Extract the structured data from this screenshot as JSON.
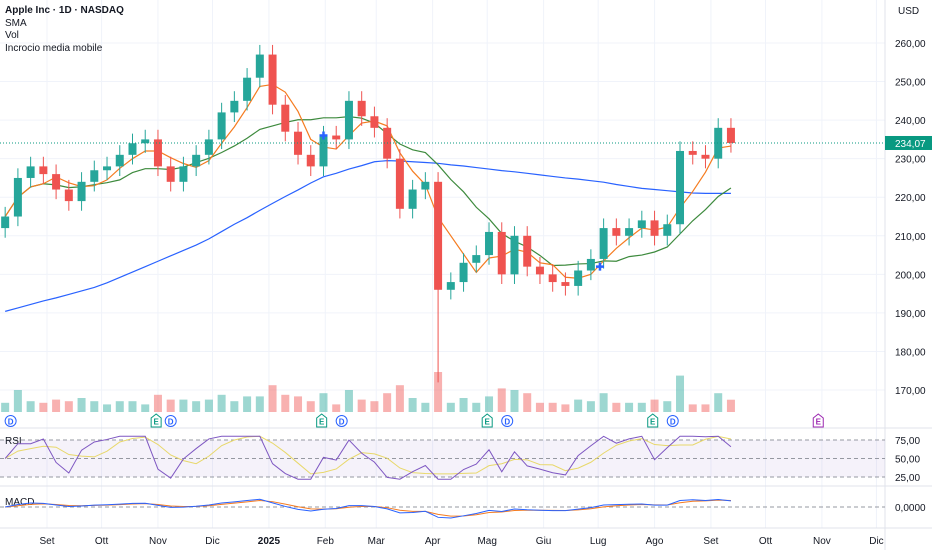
{
  "header": {
    "title": "Apple Inc · 1D · NASDAQ",
    "indicators": [
      "SMA",
      "Vol",
      "Incrocio media mobile"
    ]
  },
  "colors": {
    "up": "#26a69a",
    "down": "#ef5350",
    "sma_short": "#f57c20",
    "sma_mid": "#3d8a3d",
    "sma_long": "#2962ff",
    "rsi": "#7e57c2",
    "rsi_ma": "#e8d86a",
    "macd": "#2962ff",
    "signal": "#f57c20",
    "last_price_bg": "#089981"
  },
  "chart_data": {
    "type": "candlestick",
    "currency": "USD",
    "ylim": [
      165,
      262
    ],
    "y_ticks": [
      "260,00",
      "250,00",
      "240,00",
      "230,00",
      "220,00",
      "210,00",
      "200,00",
      "190,00",
      "180,00",
      "170,00"
    ],
    "y_tick_values": [
      260,
      250,
      240,
      230,
      220,
      210,
      200,
      190,
      180,
      170
    ],
    "last_price": "234,07",
    "last_price_value": 234.07,
    "x_ticks": [
      {
        "label": "Set",
        "date": "2024-09-01"
      },
      {
        "label": "Ott",
        "date": "2024-10-01"
      },
      {
        "label": "Nov",
        "date": "2024-11-01"
      },
      {
        "label": "Dic",
        "date": "2024-12-01"
      },
      {
        "label": "2025",
        "date": "2025-01-01",
        "bold": true
      },
      {
        "label": "Feb",
        "date": "2025-02-01"
      },
      {
        "label": "Mar",
        "date": "2025-03-01"
      },
      {
        "label": "Apr",
        "date": "2025-04-01"
      },
      {
        "label": "Mag",
        "date": "2025-05-01"
      },
      {
        "label": "Giu",
        "date": "2025-06-01"
      },
      {
        "label": "Lug",
        "date": "2025-07-01"
      },
      {
        "label": "Ago",
        "date": "2025-08-01"
      },
      {
        "label": "Set",
        "date": "2025-09-01"
      },
      {
        "label": "Ott",
        "date": "2025-10-01"
      },
      {
        "label": "Nov",
        "date": "2025-11-01"
      },
      {
        "label": "Dic",
        "date": "2025-12-01"
      }
    ],
    "dates": [
      "2024-08-09",
      "2024-08-16",
      "2024-08-23",
      "2024-08-30",
      "2024-09-06",
      "2024-09-13",
      "2024-09-20",
      "2024-09-27",
      "2024-10-04",
      "2024-10-11",
      "2024-10-18",
      "2024-10-25",
      "2024-11-01",
      "2024-11-08",
      "2024-11-15",
      "2024-11-22",
      "2024-11-29",
      "2024-12-06",
      "2024-12-13",
      "2024-12-20",
      "2024-12-27",
      "2025-01-03",
      "2025-01-10",
      "2025-01-17",
      "2025-01-24",
      "2025-01-31",
      "2025-02-07",
      "2025-02-14",
      "2025-02-21",
      "2025-02-28",
      "2025-03-07",
      "2025-03-14",
      "2025-03-21",
      "2025-03-28",
      "2025-04-04",
      "2025-04-11",
      "2025-04-18",
      "2025-04-25",
      "2025-05-02",
      "2025-05-09",
      "2025-05-16",
      "2025-05-23",
      "2025-05-30",
      "2025-06-06",
      "2025-06-13",
      "2025-06-20",
      "2025-06-27",
      "2025-07-04",
      "2025-07-11",
      "2025-07-18",
      "2025-07-25",
      "2025-08-01",
      "2025-08-08",
      "2025-08-15",
      "2025-08-22",
      "2025-08-29",
      "2025-09-05",
      "2025-09-12"
    ],
    "close": [
      215,
      225,
      228,
      226,
      222,
      219,
      224,
      227,
      228,
      231,
      234,
      235,
      228,
      224,
      228,
      231,
      235,
      242,
      245,
      251,
      257,
      244,
      237,
      231,
      228,
      236,
      235,
      245,
      241,
      238,
      230,
      217,
      222,
      224,
      196,
      198,
      203,
      205,
      211,
      200,
      210,
      202,
      200,
      198,
      197,
      201,
      204,
      212,
      210,
      212,
      214,
      210,
      213,
      232,
      231,
      230,
      238,
      234.07
    ],
    "sma_long": [
      190.4,
      191.3,
      192.2,
      193.1,
      193.9,
      194.8,
      195.7,
      196.6,
      197.8,
      199.2,
      200.6,
      202,
      203.4,
      204.8,
      206.2,
      207.6,
      209.2,
      211.1,
      213,
      214.7,
      216.6,
      218.4,
      220.2,
      221.9,
      223.7,
      225.3,
      226.2,
      227.3,
      228.2,
      229.2,
      229.5,
      229.4,
      229.2,
      229,
      228.8,
      228.4,
      228.1,
      227.7,
      227.3,
      226.9,
      226.6,
      226.2,
      225.8,
      225.4,
      225,
      224.7,
      224.3,
      223.9,
      223.3,
      222.8,
      222.3,
      222,
      221.7,
      221.4,
      221.1,
      221,
      221,
      221
    ],
    "events": [
      {
        "type": "D",
        "date": "2024-08-12"
      },
      {
        "type": "E",
        "date": "2024-10-31"
      },
      {
        "type": "D",
        "date": "2024-11-08"
      },
      {
        "type": "E",
        "date": "2025-01-30"
      },
      {
        "type": "D",
        "date": "2025-02-10"
      },
      {
        "type": "E",
        "date": "2025-05-01"
      },
      {
        "type": "D",
        "date": "2025-05-12"
      },
      {
        "type": "E",
        "date": "2025-07-31"
      },
      {
        "type": "D",
        "date": "2025-08-11"
      },
      {
        "type": "E",
        "date": "2025-10-30",
        "future": true
      }
    ],
    "crossovers": [
      {
        "date": "2025-01-31",
        "price": 236
      },
      {
        "date": "2025-07-02",
        "price": 202
      }
    ],
    "rsi": {
      "label": "RSI",
      "ticks": [
        "75,00",
        "50,00",
        "25,00"
      ],
      "levels": [
        75,
        50,
        25
      ]
    },
    "macd": {
      "label": "MACD",
      "ticks": [
        "0,0000"
      ]
    }
  }
}
